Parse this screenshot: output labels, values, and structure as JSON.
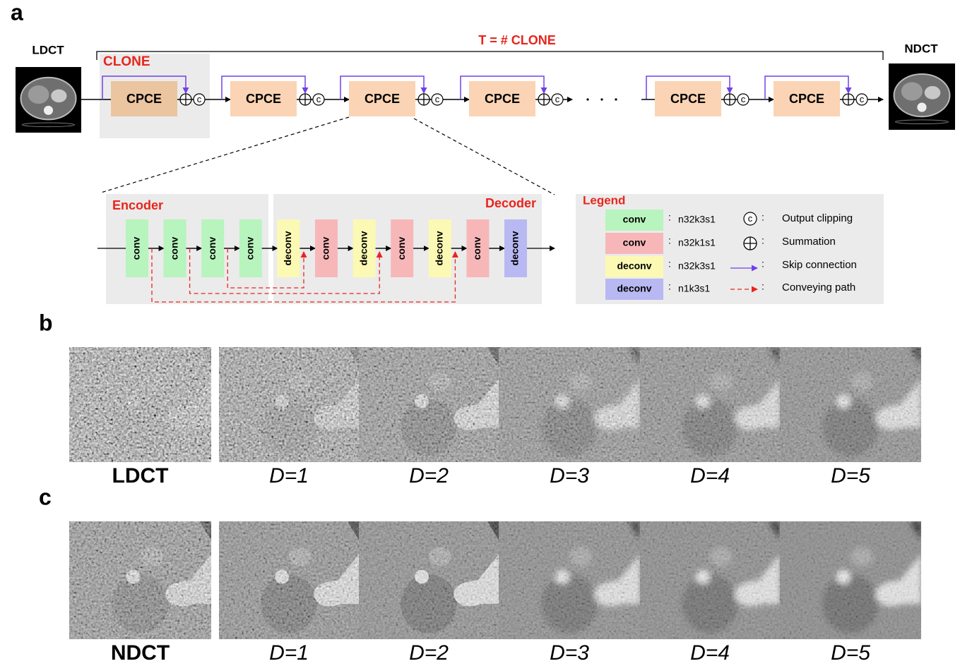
{
  "panel_labels": {
    "a": "a",
    "b": "b",
    "c": "c"
  },
  "pipeline": {
    "input": "LDCT",
    "output": "NDCT",
    "repeat": "T = # CLONE",
    "unit": "CLONE",
    "blocks": [
      "CPCE",
      "CPCE",
      "CPCE",
      "CPCE",
      "CPCE",
      "CPCE"
    ]
  },
  "clip_symbol": "c",
  "separator": ":",
  "network": {
    "encoder": "Encoder",
    "decoder": "Decoder",
    "layers": [
      {
        "label": "conv",
        "color": "#b8f4bd"
      },
      {
        "label": "conv",
        "color": "#b8f4bd"
      },
      {
        "label": "conv",
        "color": "#b8f4bd"
      },
      {
        "label": "conv",
        "color": "#b8f4bd"
      },
      {
        "label": "deconv",
        "color": "#fbf9b3"
      },
      {
        "label": "conv",
        "color": "#f7b7b9"
      },
      {
        "label": "deconv",
        "color": "#fbf9b3"
      },
      {
        "label": "conv",
        "color": "#f7b7b9"
      },
      {
        "label": "deconv",
        "color": "#fbf9b3"
      },
      {
        "label": "conv",
        "color": "#f7b7b9"
      },
      {
        "label": "deconv",
        "color": "#b8b8f2"
      }
    ]
  },
  "legend": {
    "title": "Legend",
    "layers": [
      {
        "label": "conv",
        "color": "#b8f4bd",
        "spec": "n32k3s1"
      },
      {
        "label": "conv",
        "color": "#f7b7b9",
        "spec": "n32k1s1"
      },
      {
        "label": "deconv",
        "color": "#fbf9b3",
        "spec": "n32k3s1"
      },
      {
        "label": "deconv",
        "color": "#b8b8f2",
        "spec": "n1k3s1"
      }
    ],
    "symbols": [
      "Output clipping",
      "Summation",
      "Skip connection",
      "Conveying path"
    ]
  },
  "rows": {
    "b": [
      "LDCT",
      "D=1",
      "D=2",
      "D=3",
      "D=4",
      "D=5"
    ],
    "c": [
      "NDCT",
      "D=1",
      "D=2",
      "D=3",
      "D=4",
      "D=5"
    ]
  }
}
